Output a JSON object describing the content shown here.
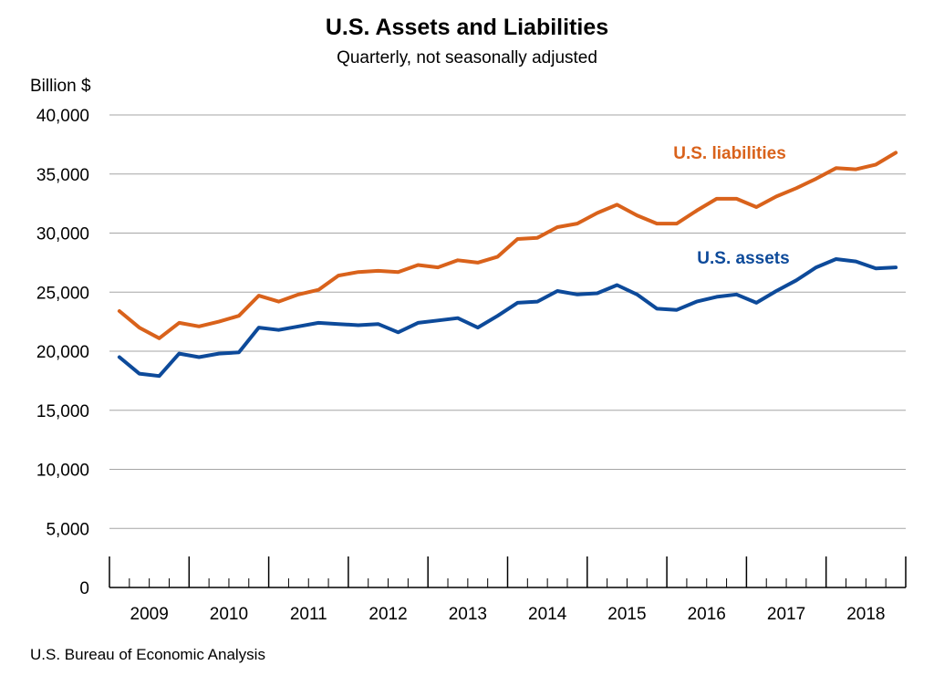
{
  "header": {
    "title": "U.S. Assets and Liabilities",
    "subtitle": "Quarterly, not seasonally adjusted"
  },
  "footer": {
    "source": "U.S. Bureau of Economic Analysis"
  },
  "chart_data": {
    "type": "line",
    "title": "U.S. Assets and Liabilities",
    "subtitle": "Quarterly, not seasonally adjusted",
    "xlabel": "",
    "ylabel": "Billion $",
    "ylim": [
      0,
      40000
    ],
    "yticks": [
      0,
      5000,
      10000,
      15000,
      20000,
      25000,
      30000,
      35000,
      40000
    ],
    "ytick_labels": [
      "0",
      "5,000",
      "10,000",
      "15,000",
      "20,000",
      "25,000",
      "30,000",
      "35,000",
      "40,000"
    ],
    "grid": true,
    "x_groups": [
      "2009",
      "2010",
      "2011",
      "2012",
      "2013",
      "2014",
      "2015",
      "2016",
      "2017",
      "2018"
    ],
    "x": [
      "2009Q1",
      "2009Q2",
      "2009Q3",
      "2009Q4",
      "2010Q1",
      "2010Q2",
      "2010Q3",
      "2010Q4",
      "2011Q1",
      "2011Q2",
      "2011Q3",
      "2011Q4",
      "2012Q1",
      "2012Q2",
      "2012Q3",
      "2012Q4",
      "2013Q1",
      "2013Q2",
      "2013Q3",
      "2013Q4",
      "2014Q1",
      "2014Q2",
      "2014Q3",
      "2014Q4",
      "2015Q1",
      "2015Q2",
      "2015Q3",
      "2015Q4",
      "2016Q1",
      "2016Q2",
      "2016Q3",
      "2016Q4",
      "2017Q1",
      "2017Q2",
      "2017Q3",
      "2017Q4",
      "2018Q1",
      "2018Q2",
      "2018Q3",
      "2018Q4"
    ],
    "series": [
      {
        "name": "U.S. liabilities",
        "color": "#d9621b",
        "values": [
          23400,
          22000,
          21100,
          22400,
          22100,
          22500,
          23000,
          24700,
          24200,
          24800,
          25200,
          26400,
          26700,
          26800,
          26700,
          27300,
          27100,
          27700,
          27500,
          28000,
          29500,
          29600,
          30500,
          30800,
          31700,
          32400,
          31500,
          30800,
          30800,
          31900,
          32900,
          32900,
          32200,
          33100,
          33800,
          34600,
          35500,
          35400,
          35800,
          36800
        ]
      },
      {
        "name": "U.S. assets",
        "color": "#0d4a9a",
        "values": [
          19500,
          18100,
          17900,
          19800,
          19500,
          19800,
          19900,
          22000,
          21800,
          22100,
          22400,
          22300,
          22200,
          22300,
          21600,
          22400,
          22600,
          22800,
          22000,
          23000,
          24100,
          24200,
          25100,
          24800,
          24900,
          25600,
          24800,
          23600,
          23500,
          24200,
          24600,
          24800,
          24100,
          25100,
          26000,
          27100,
          27800,
          27600,
          27000,
          27100
        ]
      }
    ]
  }
}
